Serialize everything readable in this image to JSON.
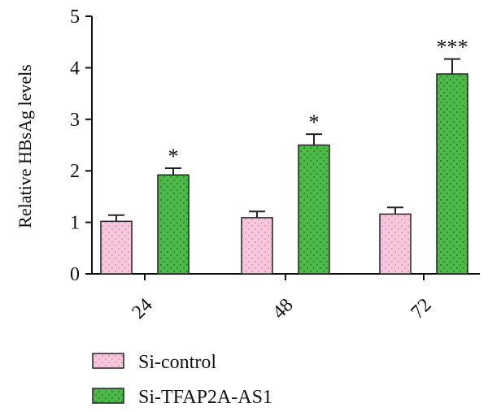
{
  "chart_data": {
    "type": "bar",
    "title": "",
    "xlabel": "",
    "ylabel": "Relative HBsAg levels",
    "categories": [
      "24",
      "48",
      "72"
    ],
    "ylim": [
      0,
      5
    ],
    "yticks": [
      "0",
      "1",
      "2",
      "3",
      "4",
      "5"
    ],
    "series": [
      {
        "name": "Si-control",
        "values": [
          1.02,
          1.09,
          1.16
        ],
        "errors": [
          0.12,
          0.12,
          0.13
        ],
        "color": "#f7c6dc",
        "pattern": "dots",
        "annotations": [
          "",
          "",
          ""
        ]
      },
      {
        "name": "Si-TFAP2A-AS1",
        "values": [
          1.92,
          2.5,
          3.88
        ],
        "errors": [
          0.13,
          0.21,
          0.29
        ],
        "color": "#4cb847",
        "pattern": "dots",
        "annotations": [
          "*",
          "*",
          "***"
        ]
      }
    ],
    "legend_position": "bottom-left",
    "grid": false
  }
}
